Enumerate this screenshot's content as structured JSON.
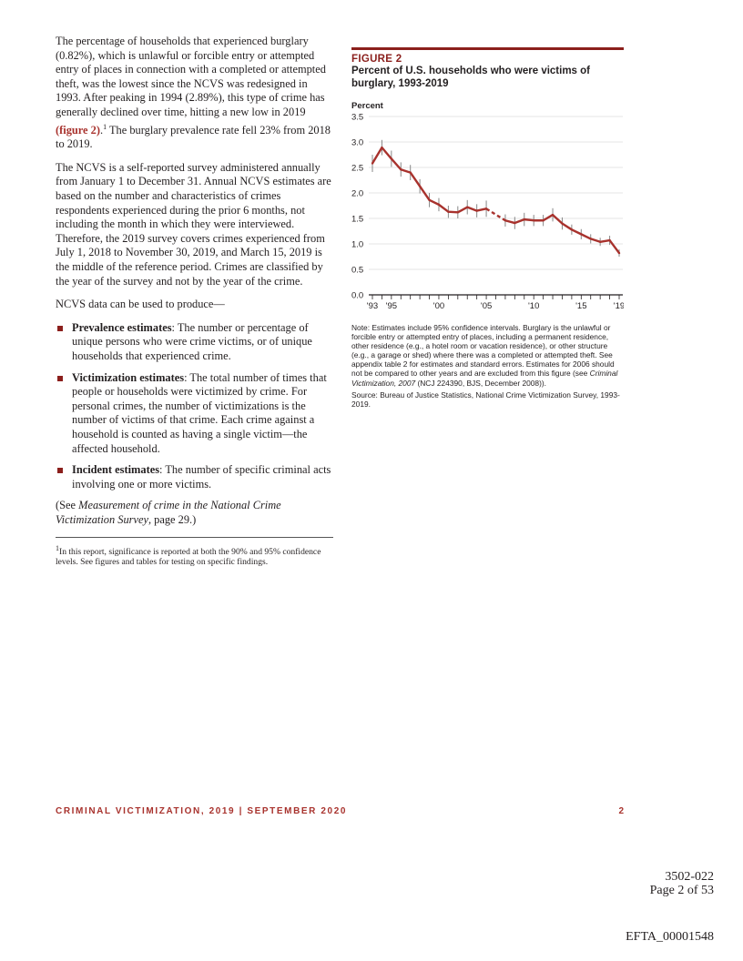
{
  "left": {
    "p1_a": "The percentage of households that experienced burglary (0.82%), which is unlawful or forcible entry or attempted entry of places in connection with a completed or attempted theft, was the lowest since the NCVS was redesigned in 1993. After peaking in 1994 (2.89%), this type of crime has generally declined over time, hitting a new low in 2019 ",
    "p1_link": "(figure 2)",
    "p1_b": ".",
    "p1_sup": "1",
    "p1_c": " The burglary prevalence rate fell 23% from 2018 to 2019.",
    "p2": "The NCVS is a self-reported survey administered annually from January 1 to December 31. Annual NCVS estimates are based on the number and characteristics of crimes respondents experienced during the prior 6 months, not including the month in which they were interviewed. Therefore, the 2019 survey covers crimes experienced from July 1, 2018 to November 30, 2019, and March 15, 2019 is the middle of the reference period. Crimes are classified by the year of the survey and not by the year of the crime.",
    "p3": "NCVS data can be used to produce—",
    "bullets": [
      {
        "term": "Prevalence estimates",
        "text": ": The number or percentage of unique persons who were crime victims, or of unique households that experienced crime."
      },
      {
        "term": "Victimization estimates",
        "text": ": The total number of times that people or households were victimized by crime. For personal crimes, the number of victimizations is the number of victims of that crime. Each crime against a household is counted as having a single victim—the affected household."
      },
      {
        "term": "Incident estimates",
        "text": ": The number of specific criminal acts involving one or more victims."
      }
    ],
    "p4_a": "(See ",
    "p4_i": "Measurement of crime in the National Crime Victimization Survey",
    "p4_b": ", page 29.)",
    "footnote_sup": "1",
    "footnote": "In this report, significance is reported at both the 90% and 95% confidence levels. See figures and tables for testing on specific findings."
  },
  "figure": {
    "label": "FIGURE 2",
    "title": "Percent of U.S. households who were victims of burglary, 1993-2019",
    "note_a": "Note: Estimates include 95% confidence intervals. Burglary is the unlawful or forcible entry or attempted entry of places, including a permanent residence, other residence (e.g., a hotel room or vacation residence), or other structure (e.g., a garage or shed) where there was a completed or attempted theft. See appendix table 2 for estimates and standard errors. Estimates for 2006 should not be compared to other years and are excluded from this figure (see ",
    "note_i": "Criminal Victimization, 2007",
    "note_b": " (NCJ 224390, BJS, December 2008)).",
    "source": "Source: Bureau of Justice Statistics, National Crime Victimization Survey, 1993-2019."
  },
  "chart_data": {
    "type": "line",
    "ylabel": "Percent",
    "ylim": [
      0,
      3.5
    ],
    "yticks": [
      "0.0",
      "0.5",
      "1.0",
      "1.5",
      "2.0",
      "2.5",
      "3.0",
      "3.5"
    ],
    "xlim": [
      1993,
      2019
    ],
    "xtick_labels": [
      {
        "x": 1993,
        "label": "'93"
      },
      {
        "x": 1995,
        "label": "'95"
      },
      {
        "x": 2000,
        "label": "'00"
      },
      {
        "x": 2005,
        "label": "'05"
      },
      {
        "x": 2010,
        "label": "'10"
      },
      {
        "x": 2015,
        "label": "'15"
      },
      {
        "x": 2019,
        "label": "'19"
      }
    ],
    "grid": true,
    "line_color": "#a8322d",
    "errorbar_color": "#888888",
    "x": [
      1993,
      1994,
      1995,
      1996,
      1997,
      1998,
      1999,
      2000,
      2001,
      2002,
      2003,
      2004,
      2005,
      2006,
      2007,
      2008,
      2009,
      2010,
      2011,
      2012,
      2013,
      2014,
      2015,
      2016,
      2017,
      2018,
      2019
    ],
    "values": [
      2.58,
      2.89,
      2.67,
      2.46,
      2.4,
      2.13,
      1.86,
      1.77,
      1.63,
      1.62,
      1.72,
      1.65,
      1.69,
      null,
      1.46,
      1.41,
      1.48,
      1.46,
      1.46,
      1.57,
      1.4,
      1.28,
      1.19,
      1.1,
      1.04,
      1.07,
      0.82
    ],
    "ci_halfwidth": [
      0.17,
      0.15,
      0.16,
      0.14,
      0.15,
      0.14,
      0.14,
      0.13,
      0.12,
      0.12,
      0.14,
      0.13,
      0.16,
      null,
      0.12,
      0.12,
      0.13,
      0.11,
      0.11,
      0.13,
      0.12,
      0.1,
      0.1,
      0.09,
      0.08,
      0.09,
      0.07
    ]
  },
  "footer": {
    "left": "CRIMINAL VICTIMIZATION, 2019 | SEPTEMBER 2020",
    "page": "2"
  },
  "stamp": {
    "line1": "3502-022",
    "line2": "Page 2 of 53",
    "id": "EFTA_00001548"
  }
}
